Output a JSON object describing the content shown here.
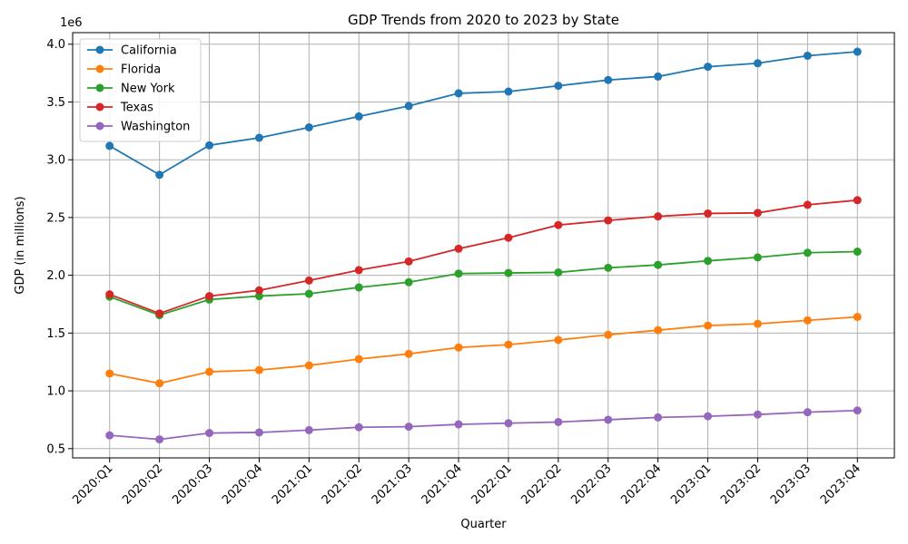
{
  "chart_data": {
    "type": "line",
    "title": "GDP Trends from 2020 to 2023 by State",
    "xlabel": "Quarter",
    "ylabel": "GDP (in millions)",
    "y_offset_label": "1e6",
    "categories": [
      "2020:Q1",
      "2020:Q2",
      "2020:Q3",
      "2020:Q4",
      "2021:Q1",
      "2021:Q2",
      "2021:Q3",
      "2021:Q4",
      "2022:Q1",
      "2022:Q2",
      "2022:Q3",
      "2022:Q4",
      "2023:Q1",
      "2023:Q2",
      "2023:Q3",
      "2023:Q4"
    ],
    "ylim": [
      420000,
      4100000
    ],
    "yticks": [
      500000,
      1000000,
      1500000,
      2000000,
      2500000,
      3000000,
      3500000,
      4000000
    ],
    "ytick_labels": [
      "0.5",
      "1.0",
      "1.5",
      "2.0",
      "2.5",
      "3.0",
      "3.5",
      "4.0"
    ],
    "grid": true,
    "legend_position": "top-left",
    "marker": "circle",
    "series": [
      {
        "name": "California",
        "color": "#1f77b4",
        "values": [
          3120000,
          2870000,
          3125000,
          3190000,
          3280000,
          3375000,
          3465000,
          3575000,
          3590000,
          3640000,
          3690000,
          3720000,
          3805000,
          3835000,
          3900000,
          3935000
        ]
      },
      {
        "name": "Florida",
        "color": "#ff7f0e",
        "values": [
          1150000,
          1065000,
          1165000,
          1180000,
          1220000,
          1275000,
          1320000,
          1375000,
          1400000,
          1440000,
          1485000,
          1525000,
          1565000,
          1580000,
          1610000,
          1640000
        ]
      },
      {
        "name": "New York",
        "color": "#2ca02c",
        "values": [
          1815000,
          1655000,
          1790000,
          1820000,
          1840000,
          1895000,
          1940000,
          2015000,
          2020000,
          2025000,
          2065000,
          2090000,
          2125000,
          2155000,
          2195000,
          2205000
        ]
      },
      {
        "name": "Texas",
        "color": "#d62728",
        "values": [
          1835000,
          1670000,
          1820000,
          1870000,
          1955000,
          2045000,
          2120000,
          2230000,
          2325000,
          2435000,
          2475000,
          2510000,
          2535000,
          2540000,
          2610000,
          2650000
        ]
      },
      {
        "name": "Washington",
        "color": "#9467bd",
        "values": [
          615000,
          580000,
          635000,
          640000,
          660000,
          685000,
          690000,
          710000,
          720000,
          730000,
          750000,
          770000,
          780000,
          795000,
          815000,
          830000
        ]
      }
    ]
  }
}
